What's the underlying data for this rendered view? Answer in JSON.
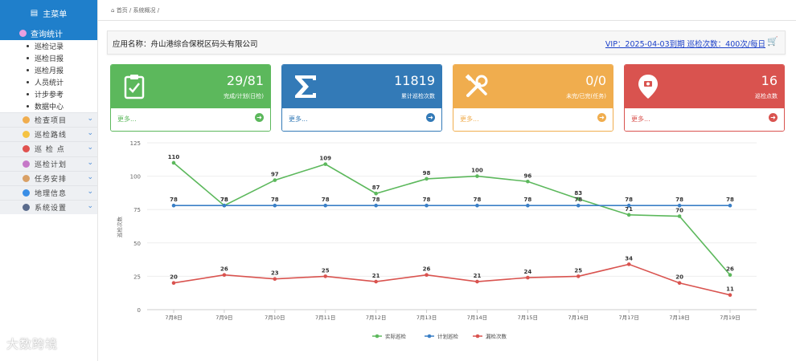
{
  "sidebar": {
    "title": "主菜单",
    "active": "查询统计",
    "subitems": [
      "巡检记录",
      "巡检日报",
      "巡检月报",
      "人员统计",
      "计步参考",
      "数据中心"
    ],
    "items": [
      {
        "label": "检查项目",
        "color": "#f0ad4e"
      },
      {
        "label": "巡检路线",
        "color": "#f5c342"
      },
      {
        "label": "巡 检 点",
        "color": "#e0524f"
      },
      {
        "label": "巡检计划",
        "color": "#c678c8"
      },
      {
        "label": "任务安排",
        "color": "#d9a066"
      },
      {
        "label": "地理信息",
        "color": "#3a8ee6"
      },
      {
        "label": "系统设置",
        "color": "#5a6b8c"
      }
    ]
  },
  "breadcrumb": {
    "home": "首页",
    "current": "系统概况"
  },
  "appbar": {
    "app_name": "应用名称：舟山港综合保税区码头有限公司",
    "vip": "VIP：2025-04-03到期 巡检次数：400次/每日"
  },
  "cards": [
    {
      "value": "29/81",
      "desc": "完成/计划(日检)",
      "more": "更多...",
      "color": "#5cb85c",
      "icon": "clipboard-check-icon"
    },
    {
      "value": "11819",
      "desc": "累计巡检次数",
      "more": "更多...",
      "color": "#337ab7",
      "icon": "sigma-icon"
    },
    {
      "value": "0/0",
      "desc": "未完/已完(任务)",
      "more": "更多...",
      "color": "#f0ad4e",
      "icon": "tools-icon"
    },
    {
      "value": "16",
      "desc": "巡检点数",
      "more": "更多...",
      "color": "#d9534f",
      "icon": "map-pin-icon"
    }
  ],
  "chart_data": {
    "type": "line",
    "categories": [
      "7月8日",
      "7月9日",
      "7月10日",
      "7月11日",
      "7月12日",
      "7月13日",
      "7月14日",
      "7月15日",
      "7月16日",
      "7月17日",
      "7月18日",
      "7月19日"
    ],
    "ylabel": "巡检次数",
    "ylim": [
      0,
      125
    ],
    "yticks": [
      0,
      25,
      50,
      75,
      100,
      125
    ],
    "legend_position": "bottom",
    "series": [
      {
        "name": "实际巡检",
        "color": "#5cb85c",
        "values": [
          110,
          78,
          97,
          109,
          87,
          98,
          100,
          96,
          83,
          71,
          70,
          26
        ]
      },
      {
        "name": "计划巡检",
        "color": "#3a7fc6",
        "values": [
          78,
          78,
          78,
          78,
          78,
          78,
          78,
          78,
          78,
          78,
          78,
          78
        ]
      },
      {
        "name": "漏检次数",
        "color": "#d9534f",
        "values": [
          20,
          26,
          23,
          25,
          21,
          26,
          21,
          24,
          25,
          34,
          20,
          11
        ]
      }
    ]
  },
  "watermark": "大数跨境"
}
